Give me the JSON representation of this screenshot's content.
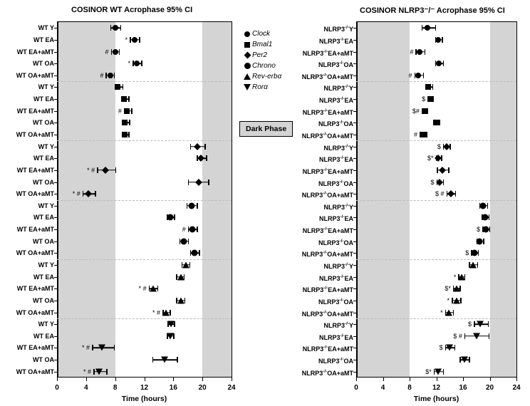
{
  "background_color": "#ffffff",
  "shade_color": "#d4d4d4",
  "grid_dash_color": "#bbbbbb",
  "axis_color": "#000000",
  "marker_color": "#000000",
  "xlim": [
    0,
    24
  ],
  "xticks": [
    0,
    4,
    8,
    12,
    16,
    20,
    24
  ],
  "xaxis_title": "Time (hours)",
  "shade_ranges": [
    [
      0,
      8
    ],
    [
      20,
      24
    ]
  ],
  "legend": {
    "items": [
      {
        "marker": "circle",
        "label": "Clock"
      },
      {
        "marker": "square",
        "label": "Bmal1"
      },
      {
        "marker": "diamond",
        "label": "Per2"
      },
      {
        "marker": "bigcircle",
        "label": "Chrono"
      },
      {
        "marker": "tri-up",
        "label": "Rev-erbα"
      },
      {
        "marker": "tri-down",
        "label": "Rorα"
      }
    ],
    "dark_phase_label": "Dark Phase"
  },
  "panels": [
    {
      "id": "wt",
      "title": "COSINOR WT Acrophase 95% CI",
      "ylabels": [
        "WT Y",
        "WT EA",
        "WT EA+aMT",
        "WT OA",
        "WT OA+aMT"
      ],
      "groups": [
        {
          "marker": "circle",
          "rows": [
            {
              "x": 8.0,
              "lo": 7.3,
              "hi": 8.7,
              "annot": ""
            },
            {
              "x": 10.7,
              "lo": 10.0,
              "hi": 11.3,
              "annot": "*"
            },
            {
              "x": 8.0,
              "lo": 7.4,
              "hi": 8.5,
              "annot": "#"
            },
            {
              "x": 11.0,
              "lo": 10.4,
              "hi": 11.6,
              "annot": "*"
            },
            {
              "x": 7.3,
              "lo": 6.7,
              "hi": 7.8,
              "annot": "#"
            }
          ]
        },
        {
          "marker": "square",
          "rows": [
            {
              "x": 8.3,
              "lo": 8.0,
              "hi": 9.0,
              "annot": ""
            },
            {
              "x": 9.2,
              "lo": 8.9,
              "hi": 9.8,
              "annot": ""
            },
            {
              "x": 9.6,
              "lo": 9.2,
              "hi": 10.2,
              "annot": "#"
            },
            {
              "x": 9.3,
              "lo": 9.1,
              "hi": 9.9,
              "annot": ""
            },
            {
              "x": 9.3,
              "lo": 9.0,
              "hi": 9.8,
              "annot": ""
            }
          ]
        },
        {
          "marker": "diamond",
          "rows": [
            {
              "x": 19.3,
              "lo": 18.3,
              "hi": 20.3,
              "annot": ""
            },
            {
              "x": 19.8,
              "lo": 19.2,
              "hi": 20.5,
              "annot": ""
            },
            {
              "x": 6.7,
              "lo": 5.5,
              "hi": 8.0,
              "annot": "* #"
            },
            {
              "x": 19.5,
              "lo": 18.0,
              "hi": 20.8,
              "annot": ""
            },
            {
              "x": 4.3,
              "lo": 3.5,
              "hi": 5.2,
              "annot": "* #"
            }
          ]
        },
        {
          "marker": "bigcircle",
          "rows": [
            {
              "x": 18.5,
              "lo": 17.8,
              "hi": 19.2,
              "annot": ""
            },
            {
              "x": 15.6,
              "lo": 15.1,
              "hi": 16.1,
              "annot": ""
            },
            {
              "x": 18.6,
              "lo": 18.0,
              "hi": 19.2,
              "annot": "#"
            },
            {
              "x": 17.4,
              "lo": 16.8,
              "hi": 18.0,
              "annot": ""
            },
            {
              "x": 18.9,
              "lo": 18.3,
              "hi": 19.5,
              "annot": ""
            }
          ]
        },
        {
          "marker": "tri-up",
          "rows": [
            {
              "x": 17.7,
              "lo": 17.1,
              "hi": 18.2,
              "annot": ""
            },
            {
              "x": 17.0,
              "lo": 16.4,
              "hi": 17.4,
              "annot": ""
            },
            {
              "x": 13.2,
              "lo": 12.6,
              "hi": 13.8,
              "annot": "* #"
            },
            {
              "x": 17.0,
              "lo": 16.4,
              "hi": 17.5,
              "annot": ""
            },
            {
              "x": 15.0,
              "lo": 14.5,
              "hi": 15.5,
              "annot": "* #"
            }
          ]
        },
        {
          "marker": "tri-down",
          "rows": [
            {
              "x": 15.7,
              "lo": 15.2,
              "hi": 16.1,
              "annot": ""
            },
            {
              "x": 15.6,
              "lo": 15.1,
              "hi": 16.0,
              "annot": ""
            },
            {
              "x": 6.2,
              "lo": 4.8,
              "hi": 7.8,
              "annot": "* #"
            },
            {
              "x": 14.8,
              "lo": 13.1,
              "hi": 16.5,
              "annot": ""
            },
            {
              "x": 5.8,
              "lo": 5.0,
              "hi": 6.8,
              "annot": "* #"
            }
          ]
        }
      ]
    },
    {
      "id": "ko",
      "title": "COSINOR NLRP3⁻/⁻ Acrophase 95% CI",
      "ylabels": [
        "NLRP3^{-/-}Y",
        "NLRP3^{-/-}EA",
        "NLRP3^{-/-}EA+aMT",
        "NLRP3^{-/-}OA",
        "NLRP3^{-/-}OA+aMT"
      ],
      "groups": [
        {
          "marker": "circle",
          "rows": [
            {
              "x": 10.7,
              "lo": 9.8,
              "hi": 11.8,
              "annot": ""
            },
            {
              "x": 12.3,
              "lo": 11.8,
              "hi": 12.8,
              "annot": ""
            },
            {
              "x": 9.5,
              "lo": 8.9,
              "hi": 10.2,
              "annot": "#"
            },
            {
              "x": 12.4,
              "lo": 11.8,
              "hi": 13.0,
              "annot": ""
            },
            {
              "x": 9.3,
              "lo": 8.7,
              "hi": 10.0,
              "annot": "#"
            }
          ]
        },
        {
          "marker": "square",
          "rows": [
            {
              "x": 10.8,
              "lo": 10.3,
              "hi": 11.4,
              "annot": ""
            },
            {
              "x": 11.1,
              "lo": 10.7,
              "hi": 11.5,
              "annot": "$"
            },
            {
              "x": 10.2,
              "lo": 9.8,
              "hi": 10.6,
              "annot": "$#"
            },
            {
              "x": 11.9,
              "lo": 11.5,
              "hi": 12.4,
              "annot": ""
            },
            {
              "x": 10.0,
              "lo": 9.5,
              "hi": 10.5,
              "annot": "#"
            }
          ]
        },
        {
          "marker": "diamond",
          "rows": [
            {
              "x": 13.5,
              "lo": 13.0,
              "hi": 14.0,
              "annot": "$"
            },
            {
              "x": 12.3,
              "lo": 11.9,
              "hi": 12.7,
              "annot": "$*"
            },
            {
              "x": 12.9,
              "lo": 12.1,
              "hi": 13.8,
              "annot": ""
            },
            {
              "x": 12.5,
              "lo": 12.0,
              "hi": 13.0,
              "annot": "$"
            },
            {
              "x": 14.2,
              "lo": 13.5,
              "hi": 14.8,
              "annot": "$ #"
            }
          ]
        },
        {
          "marker": "bigcircle",
          "rows": [
            {
              "x": 19.0,
              "lo": 18.4,
              "hi": 19.6,
              "annot": ""
            },
            {
              "x": 19.3,
              "lo": 18.8,
              "hi": 19.8,
              "annot": ""
            },
            {
              "x": 19.4,
              "lo": 18.9,
              "hi": 19.9,
              "annot": "$"
            },
            {
              "x": 18.5,
              "lo": 18.0,
              "hi": 19.0,
              "annot": ""
            },
            {
              "x": 17.7,
              "lo": 17.2,
              "hi": 18.2,
              "annot": "$"
            }
          ]
        },
        {
          "marker": "tri-up",
          "rows": [
            {
              "x": 17.5,
              "lo": 16.9,
              "hi": 18.1,
              "annot": ""
            },
            {
              "x": 15.8,
              "lo": 15.3,
              "hi": 16.2,
              "annot": "*"
            },
            {
              "x": 15.0,
              "lo": 14.5,
              "hi": 15.5,
              "annot": "$*"
            },
            {
              "x": 15.0,
              "lo": 14.3,
              "hi": 15.6,
              "annot": "*"
            },
            {
              "x": 13.9,
              "lo": 13.3,
              "hi": 14.5,
              "annot": "*"
            }
          ]
        },
        {
          "marker": "tri-down",
          "rows": [
            {
              "x": 18.6,
              "lo": 17.6,
              "hi": 19.7,
              "annot": "$"
            },
            {
              "x": 18.0,
              "lo": 16.2,
              "hi": 19.8,
              "annot": "$ #"
            },
            {
              "x": 14.0,
              "lo": 13.3,
              "hi": 14.7,
              "annot": "$"
            },
            {
              "x": 16.2,
              "lo": 15.5,
              "hi": 16.9,
              "annot": ""
            },
            {
              "x": 12.3,
              "lo": 11.6,
              "hi": 13.0,
              "annot": "$*"
            }
          ]
        }
      ]
    }
  ]
}
